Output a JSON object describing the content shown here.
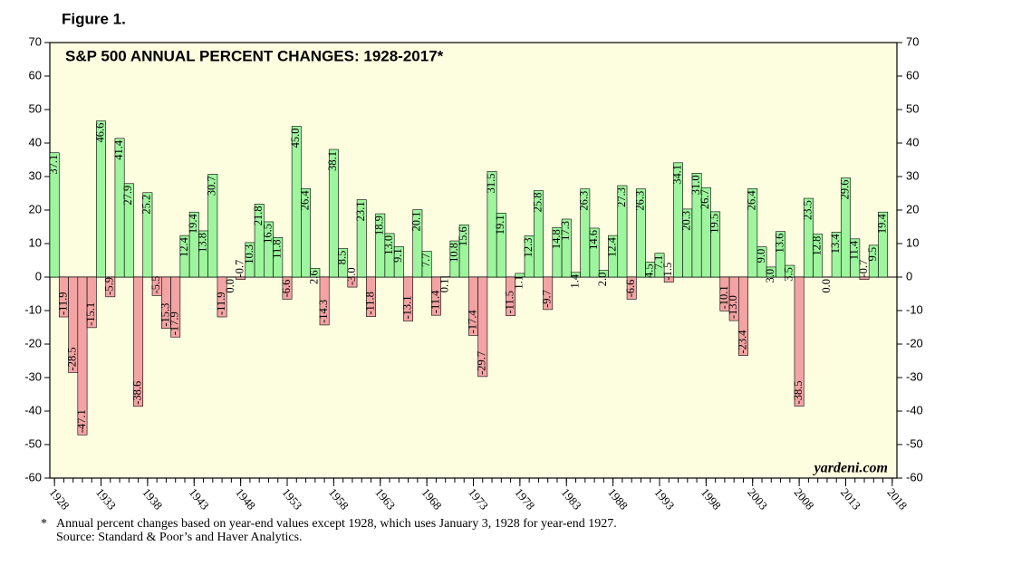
{
  "chart_data": {
    "type": "bar",
    "figure_label": "Figure 1.",
    "title": "S&P 500 ANNUAL PERCENT CHANGES: 1928-2017*",
    "watermark": "yardeni.com",
    "footnote_marker": "*",
    "footnote": "Annual percent changes based on year-end values except 1928, which uses January 3, 1928 for year-end 1927.",
    "source": "Source: Standard & Poor’s and Haver Analytics.",
    "x": [
      1928,
      1929,
      1930,
      1931,
      1932,
      1933,
      1934,
      1935,
      1936,
      1937,
      1938,
      1939,
      1940,
      1941,
      1942,
      1943,
      1944,
      1945,
      1946,
      1947,
      1948,
      1949,
      1950,
      1951,
      1952,
      1953,
      1954,
      1955,
      1956,
      1957,
      1958,
      1959,
      1960,
      1961,
      1962,
      1963,
      1964,
      1965,
      1966,
      1967,
      1968,
      1969,
      1970,
      1971,
      1972,
      1973,
      1974,
      1975,
      1976,
      1977,
      1978,
      1979,
      1980,
      1981,
      1982,
      1983,
      1984,
      1985,
      1986,
      1987,
      1988,
      1989,
      1990,
      1991,
      1992,
      1993,
      1994,
      1995,
      1996,
      1997,
      1998,
      1999,
      2000,
      2001,
      2002,
      2003,
      2004,
      2005,
      2006,
      2007,
      2008,
      2009,
      2010,
      2011,
      2012,
      2013,
      2014,
      2015,
      2016,
      2017
    ],
    "values": [
      37.1,
      -11.9,
      -28.5,
      -47.1,
      -15.1,
      46.6,
      -5.9,
      41.4,
      27.9,
      -38.6,
      25.2,
      -5.5,
      -15.3,
      -17.9,
      12.4,
      19.4,
      13.8,
      30.7,
      -11.9,
      0.0,
      -0.7,
      10.3,
      21.8,
      16.5,
      11.8,
      -6.6,
      45.0,
      26.4,
      2.6,
      -14.3,
      38.1,
      8.5,
      -3.0,
      23.1,
      -11.8,
      18.9,
      13.0,
      9.1,
      -13.1,
      20.1,
      7.7,
      -11.4,
      0.1,
      10.8,
      15.6,
      -17.4,
      -29.7,
      31.5,
      19.1,
      -11.5,
      1.1,
      12.3,
      25.8,
      -9.7,
      14.8,
      17.3,
      1.4,
      26.3,
      14.6,
      2.0,
      12.4,
      27.3,
      -6.6,
      26.3,
      4.5,
      7.1,
      -1.5,
      34.1,
      20.3,
      31.0,
      26.7,
      19.5,
      -10.1,
      -13.0,
      -23.4,
      26.4,
      9.0,
      3.0,
      13.6,
      3.5,
      -38.5,
      23.5,
      12.8,
      0.0,
      13.4,
      29.6,
      11.4,
      -0.7,
      9.5,
      19.4
    ],
    "value_labels": [
      "37.1",
      "-11.9",
      "-28.5",
      "-47.1",
      "-15.1",
      "46.6",
      "-5.9",
      "41.4",
      "27.9",
      "-38.6",
      "25.2",
      "-5.5",
      "-15.3",
      "-17.9",
      "12.4",
      "19.4",
      "13.8",
      "30.7",
      "-11.9",
      "0.0",
      "-0.7",
      "10.3",
      "21.8",
      "16.5",
      "11.8",
      "-6.6",
      "45.0",
      "26.4",
      "2.6",
      "-14.3",
      "38.1",
      "8.5",
      "-3.0",
      "23.1",
      "-11.8",
      "18.9",
      "13.0",
      "9.1",
      "-13.1",
      "20.1",
      "7.7",
      "-11.4",
      "0.1",
      "10.8",
      "15.6",
      "-17.4",
      "-29.7",
      "31.5",
      "19.1",
      "-11.5",
      "1.1",
      "12.3",
      "25.8",
      "-9.7",
      "14.8",
      "17.3",
      "1.4",
      "26.3",
      "14.6",
      "2.0",
      "12.4",
      "27.3",
      "-6.6",
      "26.3",
      "4.5",
      "7.1",
      "-1.5",
      "34.1",
      "20.3",
      "31.0",
      "26.7",
      "19.5",
      "-10.1",
      "-13.0",
      "-23.4",
      "26.4",
      "9.0",
      "3.0",
      "13.6",
      "3.5",
      "-38.5",
      "23.5",
      "12.8",
      "0.0",
      "13.4",
      "29.6",
      "11.4",
      "-0.7",
      "9.5",
      "19.4"
    ],
    "color_positive": "#9ef59e",
    "color_negative": "#f3a3a3",
    "background": "#fdfde0",
    "xlim": [
      1927.5,
      2018.5
    ],
    "xticks": [
      1928,
      1933,
      1938,
      1943,
      1948,
      1953,
      1958,
      1963,
      1968,
      1973,
      1978,
      1983,
      1988,
      1993,
      1998,
      2003,
      2008,
      2013,
      2018
    ],
    "ylim": [
      -60,
      70
    ],
    "yticks": [
      -60,
      -50,
      -40,
      -30,
      -20,
      -10,
      0,
      10,
      20,
      30,
      40,
      50,
      60,
      70
    ]
  }
}
